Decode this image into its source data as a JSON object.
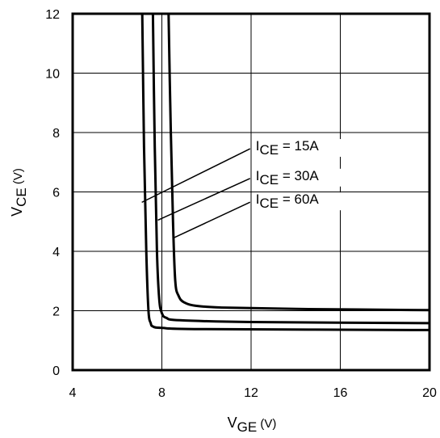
{
  "chart_data": {
    "type": "line",
    "title": "",
    "xlabel": {
      "main": "V",
      "sub": "GE",
      "unit": " (V)"
    },
    "ylabel": {
      "main": "V",
      "sub": "CE",
      "unit": " (V)"
    },
    "xlim": [
      4,
      20
    ],
    "ylim": [
      0,
      12
    ],
    "xticks": [
      4,
      8,
      12,
      16,
      20
    ],
    "yticks": [
      0,
      2,
      4,
      6,
      8,
      10,
      12
    ],
    "xtick_labels": [
      "4",
      "8",
      "12",
      "16",
      "20"
    ],
    "ytick_labels": [
      "0",
      "2",
      "4",
      "6",
      "8",
      "10",
      "12"
    ],
    "grid": true,
    "legend": "none",
    "series": [
      {
        "name": "IC E = 15A",
        "x": [
          7.12,
          7.2,
          7.3,
          7.4,
          7.5,
          7.6,
          8.0,
          10.0,
          20.0
        ],
        "y": [
          12.0,
          7.5,
          4.0,
          2.0,
          1.58,
          1.47,
          1.42,
          1.38,
          1.35
        ]
      },
      {
        "name": "IC E = 30A",
        "x": [
          7.6,
          7.68,
          7.78,
          7.88,
          8.0,
          8.2,
          8.8,
          12.0,
          20.0
        ],
        "y": [
          12.0,
          7.5,
          4.0,
          2.4,
          1.92,
          1.76,
          1.68,
          1.62,
          1.58
        ]
      },
      {
        "name": "IC E = 60A",
        "x": [
          8.3,
          8.4,
          8.5,
          8.6,
          8.75,
          9.0,
          9.6,
          11.0,
          14.0,
          20.0
        ],
        "y": [
          12.0,
          8.0,
          5.0,
          3.0,
          2.5,
          2.28,
          2.16,
          2.1,
          2.06,
          2.02
        ]
      }
    ],
    "annotations": [
      {
        "prefix": "I",
        "sub": "CE",
        "text": " = 15A",
        "anchor_x": 7.1,
        "anchor_y": 5.65,
        "label_x": 12.1,
        "label_y": 7.4
      },
      {
        "prefix": "I",
        "sub": "CE",
        "text": " = 30A",
        "anchor_x": 7.82,
        "anchor_y": 5.05,
        "label_x": 12.1,
        "label_y": 6.4
      },
      {
        "prefix": "I",
        "sub": "CE",
        "text": " = 60A",
        "anchor_x": 8.52,
        "anchor_y": 4.45,
        "label_x": 12.1,
        "label_y": 5.6
      }
    ]
  }
}
